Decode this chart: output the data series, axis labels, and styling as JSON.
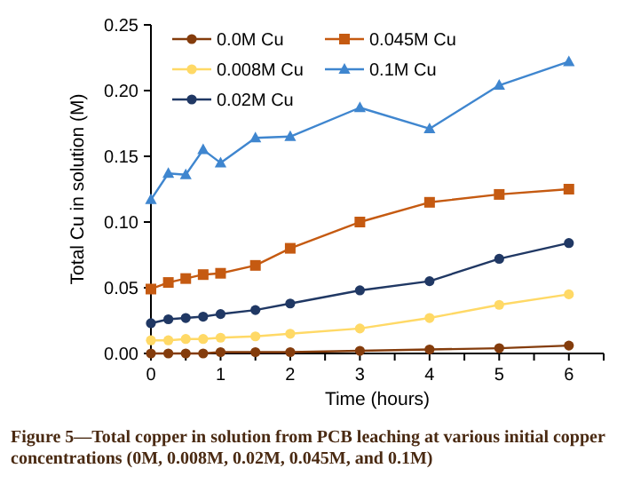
{
  "chart_data": {
    "type": "line",
    "xlabel": "Time (hours)",
    "ylabel": "Total Cu in solution (M)",
    "annotations": [
      "Figure 5—Total copper in solution from PCB leaching at various initial copper concentrations (0M, 0.008M, 0.02M, 0.045M, and 0.1M)"
    ],
    "x": [
      0,
      0.25,
      0.5,
      0.75,
      1,
      1.5,
      2,
      3,
      4,
      5,
      6
    ],
    "series": [
      {
        "name": "0.0M Cu",
        "color": "#843c0c",
        "marker": "circle",
        "values": [
          0,
          0,
          0,
          0,
          0.001,
          0.001,
          0.001,
          0.002,
          0.003,
          0.004,
          0.006
        ]
      },
      {
        "name": "0.045M Cu",
        "color": "#c55a11",
        "marker": "square",
        "values": [
          0.049,
          0.054,
          0.057,
          0.06,
          0.061,
          0.067,
          0.08,
          0.1,
          0.115,
          0.121,
          0.125
        ]
      },
      {
        "name": "0.008M Cu",
        "color": "#ffd966",
        "marker": "circle",
        "values": [
          0.01,
          0.01,
          0.011,
          0.011,
          0.012,
          0.013,
          0.015,
          0.019,
          0.027,
          0.037,
          0.045
        ]
      },
      {
        "name": "0.1M Cu",
        "color": "#3f86cf",
        "marker": "triangle",
        "values": [
          0.117,
          0.137,
          0.136,
          0.155,
          0.145,
          0.164,
          0.165,
          0.187,
          0.171,
          0.204,
          0.222
        ]
      },
      {
        "name": "0.02M Cu",
        "color": "#203864",
        "marker": "circle",
        "values": [
          0.023,
          0.026,
          0.027,
          0.028,
          0.03,
          0.033,
          0.038,
          0.048,
          0.055,
          0.072,
          0.084
        ]
      }
    ],
    "xlim": [
      0,
      6.5
    ],
    "xticks": [
      0,
      {
        "value": 0.5,
        "label": null
      },
      1,
      {
        "value": 1.5,
        "label": null
      },
      2,
      {
        "value": 2.5,
        "label": null
      },
      3,
      {
        "value": 3.5,
        "label": null
      },
      4,
      {
        "value": 4.5,
        "label": null
      },
      5,
      {
        "value": 5.5,
        "label": null
      },
      6,
      {
        "value": 6.5,
        "label": null
      }
    ],
    "ylim": [
      0,
      0.25
    ],
    "yticks": [
      {
        "value": 0,
        "label": "0.00"
      },
      0.05,
      {
        "value": 0.1,
        "label": "0.10"
      },
      0.15,
      {
        "value": 0.2,
        "label": "0.20"
      },
      0.25
    ],
    "legend": "top left",
    "grid": false,
    "line_style": "solid"
  }
}
